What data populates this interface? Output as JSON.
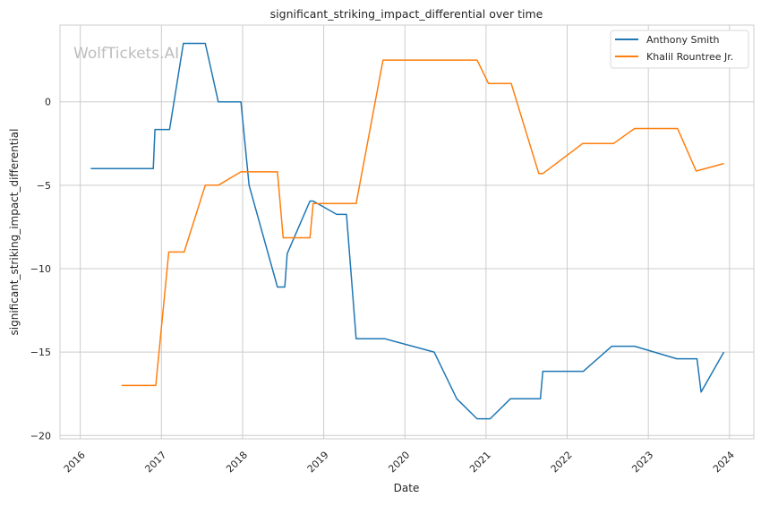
{
  "chart_data": {
    "type": "line",
    "title": "significant_striking_impact_differential over time",
    "xlabel": "Date",
    "ylabel": "significant_striking_impact_differential",
    "watermark": "WolfTickets.AI",
    "xlim": [
      2015.75,
      2024.3
    ],
    "ylim": [
      -20.2,
      4.6
    ],
    "x_ticks": [
      2016,
      2017,
      2018,
      2019,
      2020,
      2021,
      2022,
      2023,
      2024
    ],
    "y_ticks": [
      0,
      -5,
      -10,
      -15,
      -20
    ],
    "grid": true,
    "legend_position": "top-right",
    "series": [
      {
        "name": "Anthony Smith",
        "color": "#1f77b4",
        "x": [
          2016.13,
          2016.9,
          2016.92,
          2017.1,
          2017.27,
          2017.54,
          2017.7,
          2017.98,
          2018.08,
          2018.43,
          2018.52,
          2018.55,
          2018.83,
          2018.87,
          2019.16,
          2019.28,
          2019.4,
          2019.75,
          2020.36,
          2020.64,
          2020.89,
          2021.05,
          2021.3,
          2021.67,
          2021.7,
          2022.2,
          2022.55,
          2022.83,
          2023.35,
          2023.6,
          2023.65,
          2023.93
        ],
        "y": [
          -4.0,
          -4.0,
          -1.66,
          -1.66,
          3.5,
          3.5,
          0,
          0,
          -5.0,
          -11.1,
          -11.1,
          -9.1,
          -5.95,
          -5.95,
          -6.75,
          -6.75,
          -14.2,
          -14.2,
          -15.0,
          -17.8,
          -19.0,
          -19.0,
          -17.8,
          -17.8,
          -16.15,
          -16.15,
          -14.65,
          -14.65,
          -15.4,
          -15.4,
          -17.4,
          -15.0
        ]
      },
      {
        "name": "Khalil Rountree Jr.",
        "color": "#ff7f0e",
        "x": [
          2016.51,
          2016.93,
          2017.09,
          2017.28,
          2017.54,
          2017.7,
          2017.98,
          2018.43,
          2018.5,
          2018.83,
          2018.87,
          2019.23,
          2019.4,
          2019.73,
          2020.89,
          2021.03,
          2021.31,
          2021.65,
          2021.7,
          2022.19,
          2022.57,
          2022.83,
          2023.36,
          2023.59,
          2023.93
        ],
        "y": [
          -17.0,
          -17.0,
          -9.0,
          -9.0,
          -5.0,
          -5.0,
          -4.2,
          -4.2,
          -8.15,
          -8.15,
          -6.1,
          -6.1,
          -6.1,
          2.5,
          2.5,
          1.1,
          1.1,
          -4.3,
          -4.3,
          -2.5,
          -2.5,
          -1.6,
          -1.6,
          -4.15,
          -3.7
        ]
      }
    ]
  }
}
